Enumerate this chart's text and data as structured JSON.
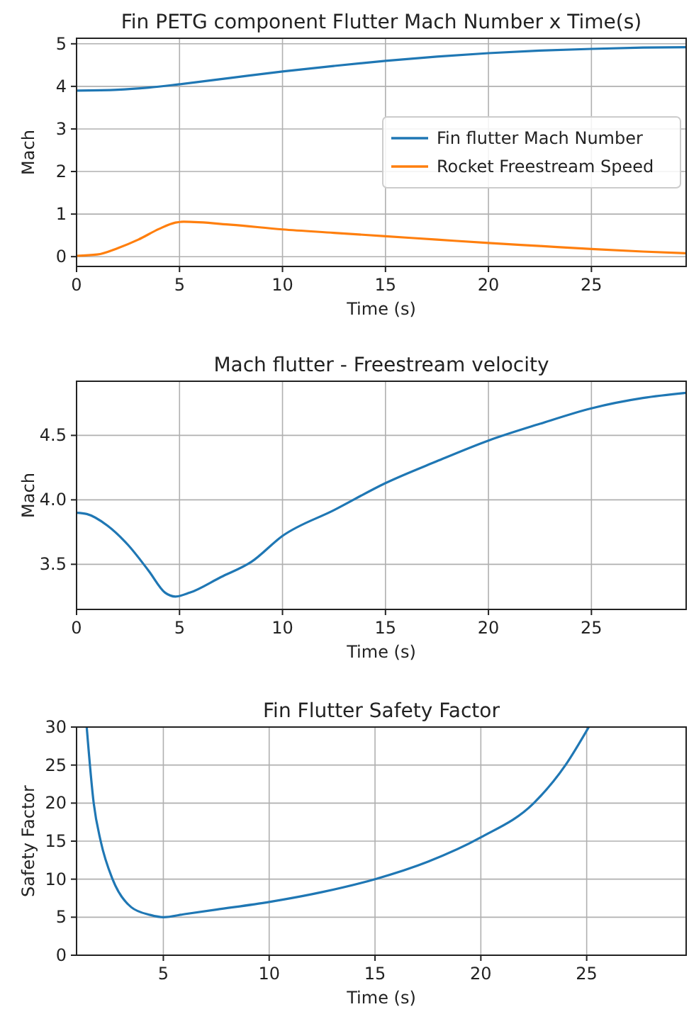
{
  "chart_data": [
    {
      "type": "line",
      "title": "Fin PETG component Flutter Mach Number x Time(s)",
      "xlabel": "Time (s)",
      "ylabel": "Mach",
      "xlim": [
        0,
        29.6
      ],
      "ylim": [
        -0.23,
        5.13
      ],
      "xticks": [
        0,
        5,
        10,
        15,
        20,
        25
      ],
      "yticks": [
        0,
        1,
        2,
        3,
        4,
        5
      ],
      "grid": true,
      "legend": "center right",
      "series": [
        {
          "name": "Fin flutter Mach Number",
          "color": "#1f77b4",
          "x": [
            0,
            2,
            3.5,
            5,
            7.5,
            10,
            12.5,
            15,
            17.5,
            20,
            22.5,
            25,
            27.5,
            29.6
          ],
          "values": [
            3.9,
            3.92,
            3.97,
            4.05,
            4.2,
            4.35,
            4.48,
            4.6,
            4.7,
            4.78,
            4.84,
            4.88,
            4.91,
            4.92
          ]
        },
        {
          "name": "Rocket Freestream Speed",
          "color": "#ff7f0e",
          "x": [
            0,
            1,
            2,
            3,
            4,
            4.8,
            5.2,
            7.5,
            10,
            12.5,
            15,
            17.5,
            20,
            22.5,
            25,
            27.5,
            29.6
          ],
          "values": [
            0.02,
            0.05,
            0.2,
            0.4,
            0.65,
            0.8,
            0.82,
            0.75,
            0.64,
            0.56,
            0.48,
            0.4,
            0.32,
            0.25,
            0.18,
            0.12,
            0.08
          ]
        }
      ]
    },
    {
      "type": "line",
      "title": "Mach flutter - Freestream velocity",
      "xlabel": "Time (s)",
      "ylabel": "Mach",
      "xlim": [
        0,
        29.6
      ],
      "ylim": [
        3.15,
        4.92
      ],
      "xticks": [
        0,
        5,
        10,
        15,
        20,
        25
      ],
      "yticks": [
        3.5,
        {
          "value": 4,
          "label": "4.0"
        },
        4.5
      ],
      "grid": true,
      "series": [
        {
          "color": "#1f77b4",
          "x": [
            0,
            0.5,
            1.5,
            2.5,
            3.5,
            4.3,
            4.8,
            5.5,
            7,
            8.5,
            10,
            12.5,
            15,
            17.5,
            20,
            22.5,
            25,
            27.5,
            29.6
          ],
          "values": [
            3.9,
            3.89,
            3.8,
            3.65,
            3.45,
            3.28,
            3.25,
            3.28,
            3.4,
            3.52,
            3.72,
            3.92,
            4.13,
            4.3,
            4.46,
            4.59,
            4.71,
            4.79,
            4.83
          ]
        }
      ]
    },
    {
      "type": "line",
      "title": "Fin Flutter Safety Factor",
      "xlabel": "Time (s)",
      "ylabel": "Safety Factor",
      "xlim": [
        0.9,
        29.7
      ],
      "ylim": [
        0,
        30
      ],
      "xticks": [
        5,
        10,
        15,
        20,
        25
      ],
      "yticks": [
        0,
        5,
        10,
        15,
        20,
        25,
        30
      ],
      "grid": true,
      "series": [
        {
          "color": "#1f77b4",
          "x": [
            1.38,
            1.71,
            2.04,
            2.6,
            3.49,
            4.38,
            5,
            6,
            7.5,
            10,
            12.5,
            15,
            17.5,
            20,
            22.5,
            24,
            25.1
          ],
          "values": [
            30,
            20,
            15,
            10,
            6.3,
            5.3,
            5.0,
            5.4,
            6,
            7,
            8.3,
            10,
            12.3,
            15.5,
            20,
            25,
            30
          ]
        }
      ]
    }
  ]
}
